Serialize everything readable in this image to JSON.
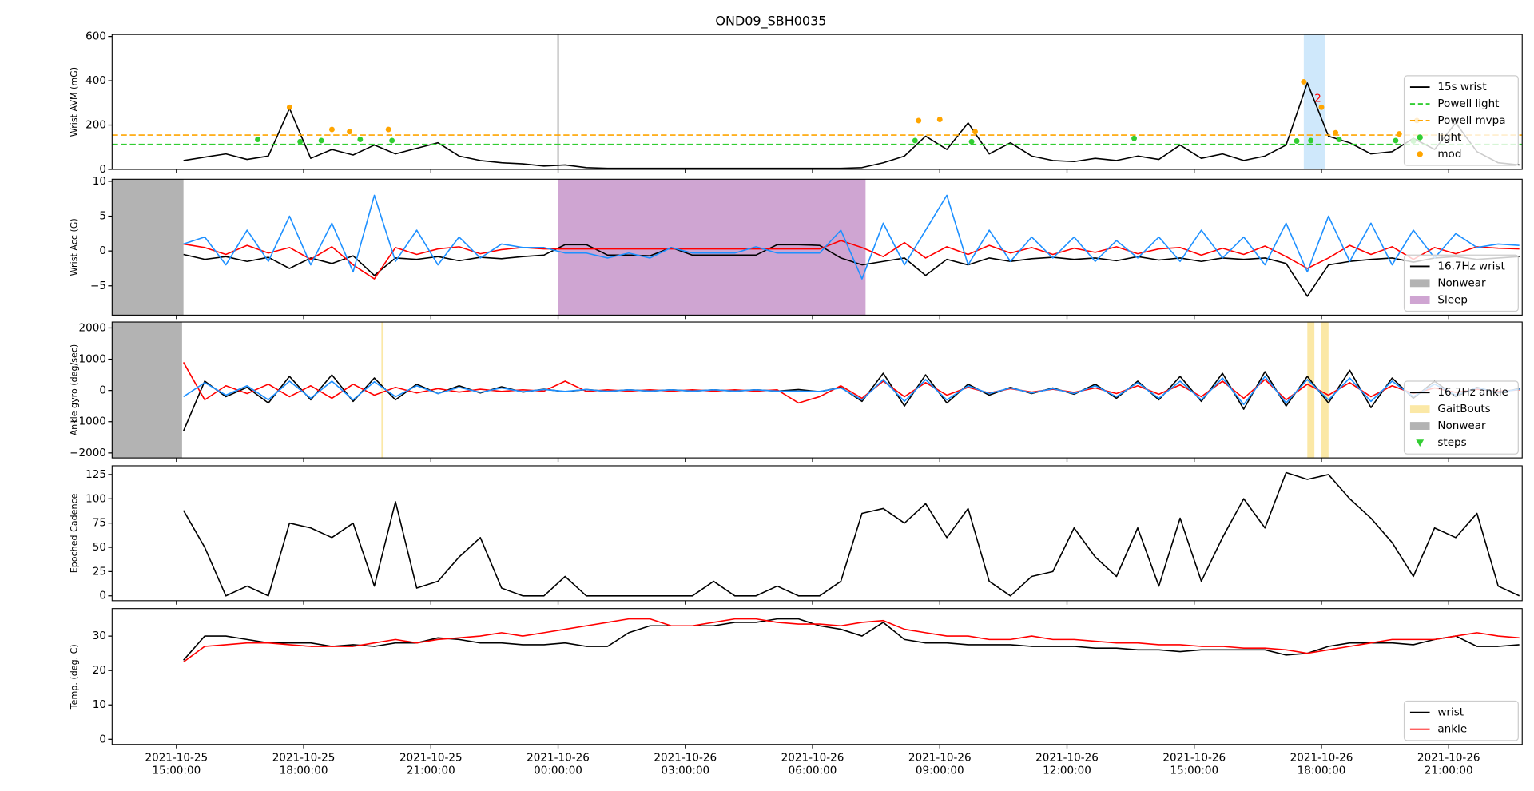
{
  "title": "OND09_SBH0035",
  "x": [
    "2021-10-25 15:10",
    "2021-10-25 15:40",
    "2021-10-25 16:10",
    "2021-10-25 16:40",
    "2021-10-25 17:10",
    "2021-10-25 17:40",
    "2021-10-25 18:10",
    "2021-10-25 18:40",
    "2021-10-25 19:10",
    "2021-10-25 19:40",
    "2021-10-25 20:10",
    "2021-10-25 20:40",
    "2021-10-25 21:10",
    "2021-10-25 21:40",
    "2021-10-25 22:10",
    "2021-10-25 22:40",
    "2021-10-25 23:10",
    "2021-10-25 23:40",
    "2021-10-26 00:10",
    "2021-10-26 00:40",
    "2021-10-26 01:10",
    "2021-10-26 01:40",
    "2021-10-26 02:10",
    "2021-10-26 02:40",
    "2021-10-26 03:10",
    "2021-10-26 03:40",
    "2021-10-26 04:10",
    "2021-10-26 04:40",
    "2021-10-26 05:10",
    "2021-10-26 05:40",
    "2021-10-26 06:10",
    "2021-10-26 06:40",
    "2021-10-26 07:10",
    "2021-10-26 07:40",
    "2021-10-26 08:10",
    "2021-10-26 08:40",
    "2021-10-26 09:10",
    "2021-10-26 09:40",
    "2021-10-26 10:10",
    "2021-10-26 10:40",
    "2021-10-26 11:10",
    "2021-10-26 11:40",
    "2021-10-26 12:10",
    "2021-10-26 12:40",
    "2021-10-26 13:10",
    "2021-10-26 13:40",
    "2021-10-26 14:10",
    "2021-10-26 14:40",
    "2021-10-26 15:10",
    "2021-10-26 15:40",
    "2021-10-26 16:10",
    "2021-10-26 16:40",
    "2021-10-26 17:10",
    "2021-10-26 17:40",
    "2021-10-26 18:10",
    "2021-10-26 18:40",
    "2021-10-26 19:10",
    "2021-10-26 19:40",
    "2021-10-26 20:10",
    "2021-10-26 20:40",
    "2021-10-26 21:10",
    "2021-10-26 21:40",
    "2021-10-26 22:10",
    "2021-10-26 22:40"
  ],
  "xlim": [
    "2021-10-25 13:29",
    "2021-10-26 22:44"
  ],
  "xticks": [
    {
      "value": "2021-10-25 15:00",
      "label": "2021-10-25 15:00:00"
    },
    {
      "value": "2021-10-25 18:00",
      "label": "2021-10-25 18:00:00"
    },
    {
      "value": "2021-10-25 21:00",
      "label": "2021-10-25 21:00:00"
    },
    {
      "value": "2021-10-26 00:00",
      "label": "2021-10-26 00:00:00"
    },
    {
      "value": "2021-10-26 03:00",
      "label": "2021-10-26 03:00:00"
    },
    {
      "value": "2021-10-26 06:00",
      "label": "2021-10-26 06:00:00"
    },
    {
      "value": "2021-10-26 09:00",
      "label": "2021-10-26 09:00:00"
    },
    {
      "value": "2021-10-26 12:00",
      "label": "2021-10-26 12:00:00"
    },
    {
      "value": "2021-10-26 15:00",
      "label": "2021-10-26 15:00:00"
    },
    {
      "value": "2021-10-26 18:00",
      "label": "2021-10-26 18:00:00"
    },
    {
      "value": "2021-10-26 21:00",
      "label": "2021-10-26 21:00:00"
    }
  ],
  "chart_data": [
    {
      "type": "line",
      "ylabel": "Wrist AVM (mG)",
      "ylim": [
        0,
        609
      ],
      "yticks": [
        0,
        200,
        400,
        600
      ],
      "legend": "lower right",
      "series": [
        {
          "name": "15s wrist",
          "color": "#000000",
          "values": [
            40,
            55,
            70,
            45,
            60,
            275,
            50,
            90,
            65,
            110,
            70,
            95,
            120,
            60,
            40,
            30,
            25,
            15,
            20,
            8,
            5,
            5,
            5,
            5,
            5,
            5,
            5,
            5,
            5,
            5,
            5,
            5,
            8,
            30,
            60,
            150,
            90,
            210,
            70,
            120,
            60,
            40,
            35,
            50,
            40,
            60,
            45,
            110,
            50,
            70,
            40,
            60,
            110,
            390,
            150,
            120,
            70,
            80,
            140,
            90,
            210,
            80,
            30,
            20
          ]
        }
      ],
      "hlines": [
        {
          "name": "Powell light",
          "color": "#32cd32",
          "style": "dashed",
          "value": 113
        },
        {
          "name": "Powell mvpa",
          "color": "#ffa500",
          "style": "dashed",
          "value": 155
        }
      ],
      "vlines": [
        {
          "x": "2021-10-26 00:00",
          "color": "#555555"
        }
      ],
      "spans": [
        {
          "color": "#cfe8fb",
          "ranges": [
            [
              "2021-10-26 17:35",
              "2021-10-26 18:05"
            ]
          ]
        }
      ],
      "scatter": [
        {
          "name": "light",
          "color": "#32cd32",
          "marker": "o",
          "x": [
            "2021-10-25 16:55",
            "2021-10-25 17:55",
            "2021-10-25 18:25",
            "2021-10-25 19:20",
            "2021-10-25 20:05",
            "2021-10-26 08:25",
            "2021-10-26 09:45",
            "2021-10-26 13:35",
            "2021-10-26 17:25",
            "2021-10-26 17:45",
            "2021-10-26 18:25",
            "2021-10-26 19:45",
            "2021-10-26 20:10"
          ],
          "y": [
            135,
            125,
            130,
            135,
            130,
            130,
            125,
            140,
            128,
            130,
            135,
            130,
            128
          ]
        },
        {
          "name": "mod",
          "color": "#ffa500",
          "marker": "o",
          "x": [
            "2021-10-25 17:40",
            "2021-10-25 18:40",
            "2021-10-25 19:05",
            "2021-10-25 20:00",
            "2021-10-26 08:30",
            "2021-10-26 09:00",
            "2021-10-26 09:50",
            "2021-10-26 17:35",
            "2021-10-26 18:00",
            "2021-10-26 18:20",
            "2021-10-26 19:50",
            "2021-10-26 20:15"
          ],
          "y": [
            280,
            180,
            170,
            180,
            220,
            225,
            170,
            395,
            280,
            165,
            160,
            220
          ]
        }
      ],
      "annotations": [
        {
          "text": "2",
          "x": "2021-10-26 17:55",
          "y": 320,
          "color": "#ff0000"
        }
      ]
    },
    {
      "type": "line",
      "ylabel": "Wrist Acc (G)",
      "ylim": [
        -9.2,
        10.3
      ],
      "yticks": [
        {
          "value": -5,
          "label": "−5"
        },
        0,
        5,
        10
      ],
      "legend": "lower right",
      "series": [
        {
          "name": "16.7Hz wrist",
          "color": "#000000",
          "values": [
            -0.5,
            -1.2,
            -0.8,
            -1.5,
            -0.9,
            -2.5,
            -1,
            -1.8,
            -0.7,
            -3.5,
            -1,
            -1.2,
            -0.8,
            -1.4,
            -0.9,
            -1.1,
            -0.8,
            -0.6,
            0.9,
            0.9,
            -0.6,
            -0.6,
            -0.7,
            0.5,
            -0.6,
            -0.6,
            -0.6,
            -0.6,
            0.9,
            0.9,
            0.8,
            -1,
            -2,
            -1.5,
            -1,
            -3.5,
            -1.2,
            -2,
            -1,
            -1.5,
            -1.1,
            -0.9,
            -1.2,
            -1,
            -1.4,
            -0.8,
            -1.3,
            -1,
            -1.5,
            -1,
            -1.2,
            -1,
            -1.8,
            -6.5,
            -2,
            -1.5,
            -1.2,
            -1,
            -1.6,
            -1,
            -0.8,
            -1.2,
            -1,
            -0.8
          ]
        },
        {
          "color": "#ff0000",
          "values": [
            1,
            0.5,
            -0.5,
            0.8,
            -0.3,
            0.5,
            -1.2,
            0.6,
            -2,
            -4,
            0.5,
            -0.5,
            0.3,
            0.6,
            -0.4,
            0.2,
            0.5,
            0.3,
            0.3,
            0.3,
            0.3,
            0.3,
            0.3,
            0.3,
            0.3,
            0.3,
            0.3,
            0.3,
            0.3,
            0.3,
            0.3,
            1.5,
            0.5,
            -0.8,
            1.2,
            -1,
            0.6,
            -0.5,
            0.8,
            -0.3,
            0.5,
            -0.5,
            0.4,
            -0.2,
            0.6,
            -0.4,
            0.3,
            0.5,
            -0.6,
            0.4,
            -0.5,
            0.7,
            -0.8,
            -2.5,
            -1,
            0.8,
            -0.5,
            0.6,
            -1.2,
            0.5,
            -0.4,
            0.6,
            0.4,
            0.3
          ]
        },
        {
          "color": "#1e90ff",
          "values": [
            1,
            2,
            -2,
            3,
            -1.5,
            5,
            -2,
            4,
            -3,
            8,
            -1.5,
            3,
            -2,
            2,
            -1,
            1,
            0.5,
            0.5,
            -0.3,
            -0.3,
            -1,
            -0.3,
            -1,
            0.5,
            -0.3,
            -0.3,
            -0.3,
            0.6,
            -0.3,
            -0.3,
            -0.3,
            3,
            -4,
            4,
            -2,
            3,
            8,
            -2,
            3,
            -1.5,
            2,
            -1,
            2,
            -1.5,
            1.5,
            -1,
            2,
            -1.5,
            3,
            -1,
            2,
            -2,
            4,
            -3,
            5,
            -1.5,
            4,
            -2,
            3,
            -1,
            2.5,
            0.5,
            1,
            0.8
          ]
        }
      ],
      "spans": [
        {
          "name": "Nonwear",
          "color": "#b3b3b3",
          "ranges": [
            [
              "2021-10-25 13:29",
              "2021-10-25 15:10"
            ]
          ]
        },
        {
          "name": "Sleep",
          "color": "#cfa5d2",
          "ranges": [
            [
              "2021-10-26 00:00",
              "2021-10-26 07:15"
            ]
          ]
        }
      ]
    },
    {
      "type": "line",
      "ylabel": "Ankle gyro (deg/sec)",
      "ylim": [
        -2160,
        2190
      ],
      "yticks": [
        {
          "value": -2000,
          "label": "−2000"
        },
        {
          "value": -1000,
          "label": "−1000"
        },
        0,
        1000,
        2000
      ],
      "legend": "lower right",
      "series": [
        {
          "name": "16.7Hz ankle",
          "color": "#000000",
          "values": [
            -1300,
            300,
            -200,
            100,
            -400,
            450,
            -300,
            500,
            -350,
            400,
            -300,
            200,
            -100,
            150,
            -80,
            120,
            -50,
            40,
            -40,
            30,
            -30,
            20,
            -20,
            20,
            -20,
            20,
            -20,
            20,
            -20,
            30,
            -40,
            100,
            -350,
            550,
            -500,
            500,
            -400,
            200,
            -150,
            100,
            -100,
            80,
            -120,
            200,
            -250,
            300,
            -300,
            450,
            -350,
            550,
            -600,
            600,
            -500,
            450,
            -400,
            650,
            -550,
            400,
            -250,
            300,
            -200,
            100,
            -80,
            60
          ]
        },
        {
          "color": "#ff0000",
          "values": [
            900,
            -300,
            150,
            -100,
            200,
            -200,
            150,
            -250,
            200,
            -150,
            100,
            -80,
            60,
            -50,
            40,
            -30,
            20,
            -20,
            300,
            -30,
            20,
            -20,
            20,
            -20,
            20,
            -20,
            20,
            -20,
            20,
            -400,
            -200,
            150,
            -250,
            300,
            -200,
            250,
            -150,
            100,
            -80,
            60,
            -50,
            40,
            -60,
            80,
            -100,
            150,
            -120,
            180,
            -200,
            300,
            -250,
            350,
            -300,
            200,
            -150,
            250,
            -200,
            150,
            -100,
            80,
            -60,
            40,
            -30,
            20
          ]
        },
        {
          "color": "#1e90ff",
          "values": [
            -200,
            250,
            -150,
            150,
            -300,
            300,
            -250,
            300,
            -300,
            280,
            -200,
            150,
            -100,
            100,
            -60,
            80,
            -40,
            30,
            -30,
            30,
            -30,
            20,
            -20,
            20,
            -20,
            20,
            -20,
            20,
            -20,
            -20,
            -30,
            80,
            -300,
            350,
            -350,
            350,
            -300,
            150,
            -100,
            80,
            -80,
            60,
            -100,
            150,
            -200,
            250,
            -250,
            300,
            -300,
            400,
            -450,
            450,
            -400,
            350,
            -300,
            400,
            -350,
            300,
            -200,
            200,
            -150,
            80,
            -60,
            40
          ]
        }
      ],
      "spans": [
        {
          "name": "GaitBouts",
          "color": "#fbe8a6",
          "ranges": [
            [
              "2021-10-25 19:50",
              "2021-10-25 19:53"
            ],
            [
              "2021-10-26 17:40",
              "2021-10-26 17:50"
            ],
            [
              "2021-10-26 18:00",
              "2021-10-26 18:10"
            ]
          ]
        },
        {
          "name": "Nonwear",
          "color": "#b3b3b3",
          "ranges": [
            [
              "2021-10-25 13:29",
              "2021-10-25 15:08"
            ]
          ]
        }
      ],
      "scatter": [
        {
          "name": "steps",
          "color": "#32cd32",
          "marker": "v",
          "x": [],
          "y": []
        }
      ]
    },
    {
      "type": "line",
      "ylabel": "Epoched Cadence",
      "ylim": [
        -5,
        134
      ],
      "yticks": [
        0,
        25,
        50,
        75,
        100,
        125
      ],
      "series": [
        {
          "color": "#000000",
          "values": [
            88,
            50,
            0,
            10,
            0,
            75,
            70,
            60,
            75,
            10,
            97,
            8,
            15,
            40,
            60,
            8,
            0,
            0,
            20,
            0,
            0,
            0,
            0,
            0,
            0,
            15,
            0,
            0,
            10,
            0,
            0,
            15,
            85,
            90,
            75,
            95,
            60,
            90,
            15,
            0,
            20,
            25,
            70,
            40,
            20,
            70,
            10,
            80,
            15,
            60,
            100,
            70,
            127,
            120,
            125,
            100,
            80,
            55,
            20,
            70,
            60,
            85,
            10,
            0
          ]
        }
      ]
    },
    {
      "type": "line",
      "ylabel": "Temp. (deg. C)",
      "ylim": [
        -1.5,
        38
      ],
      "yticks": [
        0,
        10,
        20,
        30
      ],
      "legend": "lower right",
      "series": [
        {
          "name": "wrist",
          "color": "#000000",
          "values": [
            23,
            30,
            30,
            29,
            28,
            28,
            28,
            27,
            27.5,
            27,
            28,
            28,
            29.5,
            29,
            28,
            28,
            27.5,
            27.5,
            28,
            27,
            27,
            31,
            33,
            33,
            33,
            33,
            34,
            34,
            35,
            35,
            33,
            32,
            30,
            34,
            29,
            28,
            28,
            27.5,
            27.5,
            27.5,
            27,
            27,
            27,
            26.5,
            26.5,
            26,
            26,
            25.5,
            26,
            26,
            26,
            26,
            24.5,
            25,
            27,
            28,
            28,
            28,
            27.5,
            29,
            30,
            27,
            27,
            27.5
          ]
        },
        {
          "name": "ankle",
          "color": "#ff0000",
          "values": [
            22.5,
            27,
            27.5,
            28,
            28,
            27.5,
            27,
            27,
            27,
            28,
            29,
            28,
            29,
            29.5,
            30,
            31,
            30,
            31,
            32,
            33,
            34,
            35,
            35,
            33,
            33,
            34,
            35,
            35,
            34,
            33.5,
            33.5,
            33,
            34,
            34.5,
            32,
            31,
            30,
            30,
            29,
            29,
            30,
            29,
            29,
            28.5,
            28,
            28,
            27.5,
            27.5,
            27,
            27,
            26.5,
            26.5,
            26,
            25,
            26,
            27,
            28,
            29,
            29,
            29,
            30,
            31,
            30,
            29.5
          ]
        }
      ]
    }
  ]
}
